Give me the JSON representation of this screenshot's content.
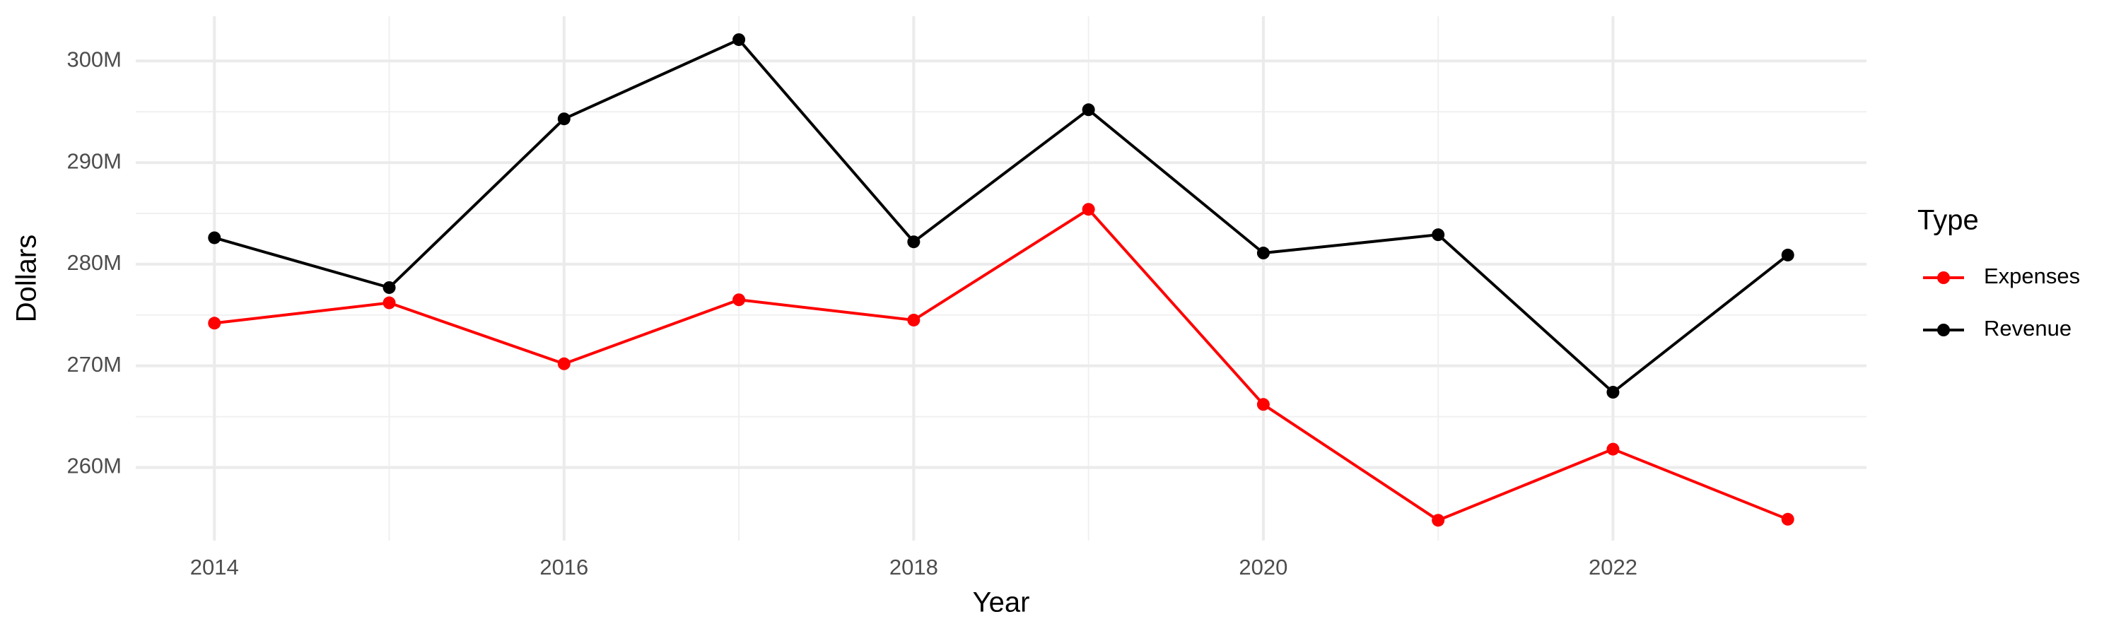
{
  "chart_data": {
    "type": "line",
    "x_label": "Year",
    "y_label": "Dollars",
    "x": [
      2014,
      2015,
      2016,
      2017,
      2018,
      2019,
      2020,
      2021,
      2022,
      2023
    ],
    "series": [
      {
        "name": "Expenses",
        "color": "#ff0000",
        "values": [
          274200000,
          276200000,
          270200000,
          276500000,
          274500000,
          285400000,
          266200000,
          254800000,
          261800000,
          254900000
        ]
      },
      {
        "name": "Revenue",
        "color": "#000000",
        "values": [
          282600000,
          277700000,
          294300000,
          302100000,
          282200000,
          295200000,
          281100000,
          282900000,
          267400000,
          280900000
        ]
      }
    ],
    "xlim": [
      2013.55,
      2023.45
    ],
    "xticks": [
      2014,
      2016,
      2018,
      2020,
      2022
    ],
    "ylim": [
      252800000,
      304400000
    ],
    "yticks": [
      {
        "value": 260000000,
        "label": "260M"
      },
      {
        "value": 270000000,
        "label": "270M"
      },
      {
        "value": 280000000,
        "label": "280M"
      },
      {
        "value": 290000000,
        "label": "290M"
      },
      {
        "value": 300000000,
        "label": "300M"
      }
    ],
    "grid": true,
    "legend_title": "Type",
    "legend_position": "right"
  }
}
